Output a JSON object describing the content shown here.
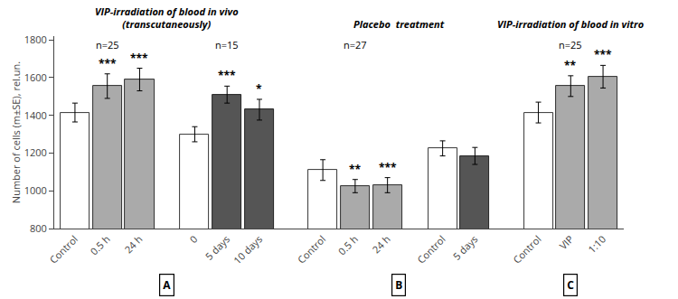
{
  "chart_data": {
    "type": "bar",
    "ylabel": "Number of cells (m±SE), rel.un.",
    "ylim": [
      800,
      1820
    ],
    "yticks": [
      800,
      1000,
      1200,
      1400,
      1600,
      1800
    ],
    "grid": false,
    "panels": [
      {
        "label": "A",
        "title": "VIP-irradiation of blood in vivo\n(transcutaneously)",
        "groups": [
          {
            "categories": [
              "Control",
              "0.5 h",
              "24 h"
            ],
            "values": [
              1415,
              1555,
              1590
            ],
            "errors": [
              50,
              65,
              60
            ],
            "colors": [
              "#ffffff",
              "#aaaaaa",
              "#aaaaaa"
            ],
            "significance": [
              null,
              "***",
              "***"
            ],
            "n_label": "n=25"
          },
          {
            "categories": [
              "0",
              "5 days",
              "10 days"
            ],
            "values": [
              1300,
              1510,
              1430
            ],
            "errors": [
              40,
              45,
              55
            ],
            "colors": [
              "#ffffff",
              "#555555",
              "#555555"
            ],
            "significance": [
              null,
              "***",
              "*"
            ],
            "n_label": "n=15"
          }
        ]
      },
      {
        "label": "B",
        "title": "Placebo  treatment",
        "groups": [
          {
            "categories": [
              "Control",
              "0.5 h",
              "24 h"
            ],
            "values": [
              1110,
              1025,
              1030
            ],
            "errors": [
              55,
              35,
              40
            ],
            "colors": [
              "#ffffff",
              "#aaaaaa",
              "#aaaaaa"
            ],
            "significance": [
              null,
              "**",
              "***"
            ],
            "n_label": "n=27"
          },
          {
            "categories": [
              "Control",
              "5 days"
            ],
            "values": [
              1225,
              1185
            ],
            "errors": [
              40,
              45
            ],
            "colors": [
              "#ffffff",
              "#555555"
            ],
            "significance": [
              null,
              null
            ]
          }
        ]
      },
      {
        "label": "C",
        "title": "VIP-irradiation of blood in vitro",
        "groups": [
          {
            "categories": [
              "Control",
              "VIP",
              "1:10"
            ],
            "values": [
              1415,
              1555,
              1605
            ],
            "errors": [
              55,
              55,
              60
            ],
            "colors": [
              "#ffffff",
              "#aaaaaa",
              "#aaaaaa"
            ],
            "significance": [
              null,
              "**",
              "***"
            ],
            "n_label": "n=25"
          }
        ]
      }
    ]
  }
}
